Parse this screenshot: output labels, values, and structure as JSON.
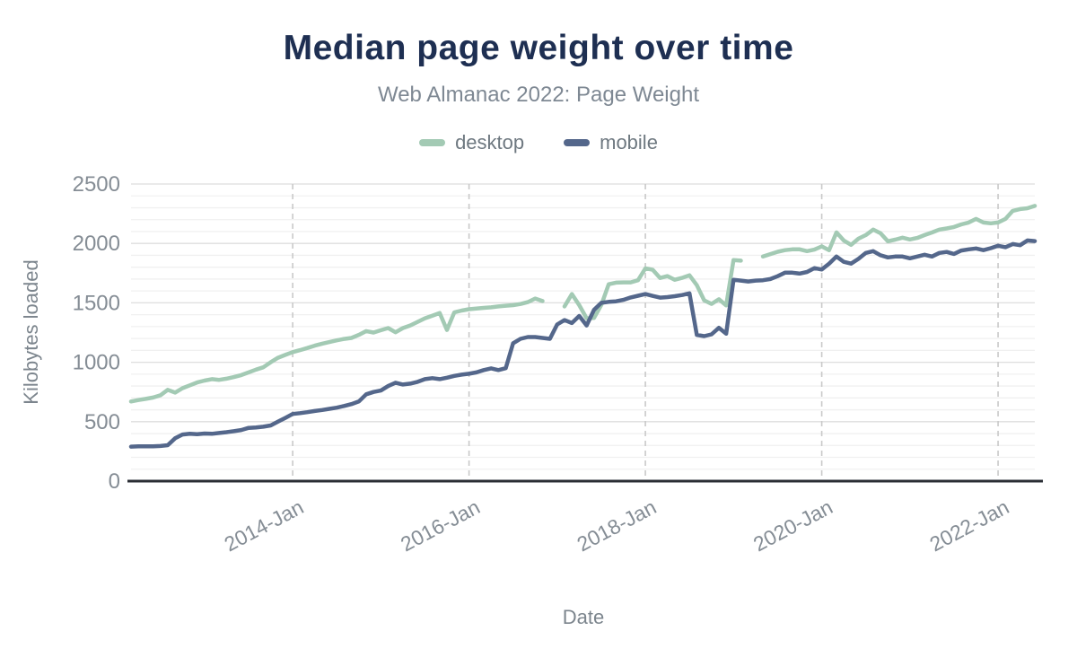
{
  "header": {
    "title": "Median page weight over time",
    "subtitle": "Web Almanac 2022: Page Weight"
  },
  "legend": [
    {
      "label": "desktop",
      "color": "#a3cab4"
    },
    {
      "label": "mobile",
      "color": "#54678b"
    }
  ],
  "colors": {
    "title": "#1e2f52",
    "subtitle": "#7e8893",
    "desktop_line": "#a3cab4",
    "mobile_line": "#54678b",
    "axis_line": "#2a2e34",
    "major_gridline": "#dedede",
    "minor_gridline": "#f0f0f0",
    "vertical_gridline": "#c9c9c9",
    "tick_label": "#858d95",
    "axis_title": "#7c858d"
  },
  "chart_data": {
    "type": "line",
    "title": "Median page weight over time",
    "subtitle": "Web Almanac 2022: Page Weight",
    "xlabel": "Date",
    "ylabel": "Kilobytes loaded",
    "ylim": [
      0,
      2500
    ],
    "y_tick_step": 500,
    "y_minor_step": 100,
    "y_tick_labels": [
      "0",
      "500",
      "1000",
      "1500",
      "2000",
      "2500"
    ],
    "x_start_month": "2012-03",
    "x_interval": "1 month",
    "x_points": 124,
    "x_tick_labels": [
      "2014-Jan",
      "2016-Jan",
      "2018-Jan",
      "2020-Jan",
      "2022-Jan"
    ],
    "x_tick_month_index": [
      22,
      46,
      70,
      94,
      118
    ],
    "grid": "horizontal minor+major, dashed vertical at labeled years",
    "legend_position": "top-center",
    "series": [
      {
        "name": "desktop",
        "color": "#a3cab4",
        "values": [
          670,
          682,
          692,
          703,
          722,
          768,
          745,
          782,
          806,
          830,
          846,
          858,
          852,
          862,
          875,
          892,
          915,
          938,
          958,
          1000,
          1038,
          1062,
          1085,
          1102,
          1120,
          1140,
          1156,
          1170,
          1184,
          1196,
          1205,
          1230,
          1262,
          1250,
          1270,
          1288,
          1252,
          1288,
          1310,
          1340,
          1370,
          1392,
          1415,
          1272,
          1420,
          1435,
          1446,
          1452,
          1458,
          1462,
          1470,
          1476,
          1480,
          1490,
          1506,
          1536,
          1515,
          null,
          null,
          1470,
          1574,
          1480,
          1370,
          1372,
          1483,
          1656,
          1670,
          1672,
          1672,
          1690,
          1790,
          1778,
          1709,
          1725,
          1694,
          1710,
          1732,
          1649,
          1521,
          1491,
          1530,
          1478,
          1860,
          1855,
          null,
          null,
          1890,
          1910,
          1930,
          1943,
          1950,
          1950,
          1935,
          1948,
          1975,
          1943,
          2093,
          2025,
          1988,
          2040,
          2070,
          2116,
          2085,
          2018,
          2032,
          2048,
          2033,
          2046,
          2070,
          2092,
          2116,
          2126,
          2138,
          2160,
          2176,
          2206,
          2176,
          2169,
          2176,
          2206,
          2274,
          2289,
          2296,
          2316
        ]
      },
      {
        "name": "mobile",
        "color": "#54678b",
        "values": [
          290,
          292,
          293,
          292,
          295,
          302,
          360,
          392,
          398,
          395,
          400,
          398,
          405,
          412,
          420,
          430,
          448,
          452,
          458,
          468,
          500,
          532,
          565,
          572,
          580,
          590,
          598,
          608,
          618,
          632,
          648,
          670,
          730,
          750,
          762,
          800,
          828,
          813,
          820,
          835,
          858,
          866,
          858,
          870,
          885,
          896,
          903,
          915,
          934,
          949,
          934,
          950,
          1160,
          1197,
          1212,
          1212,
          1205,
          1197,
          1318,
          1355,
          1330,
          1390,
          1310,
          1440,
          1500,
          1508,
          1513,
          1525,
          1545,
          1560,
          1574,
          1558,
          1544,
          1548,
          1556,
          1566,
          1580,
          1230,
          1220,
          1235,
          1290,
          1240,
          1694,
          1687,
          1680,
          1687,
          1690,
          1700,
          1724,
          1754,
          1754,
          1746,
          1760,
          1792,
          1780,
          1830,
          1890,
          1845,
          1830,
          1870,
          1920,
          1935,
          1900,
          1882,
          1890,
          1890,
          1875,
          1890,
          1905,
          1890,
          1920,
          1928,
          1912,
          1940,
          1950,
          1958,
          1943,
          1960,
          1980,
          1968,
          1995,
          1985,
          2025,
          2020
        ]
      }
    ]
  }
}
